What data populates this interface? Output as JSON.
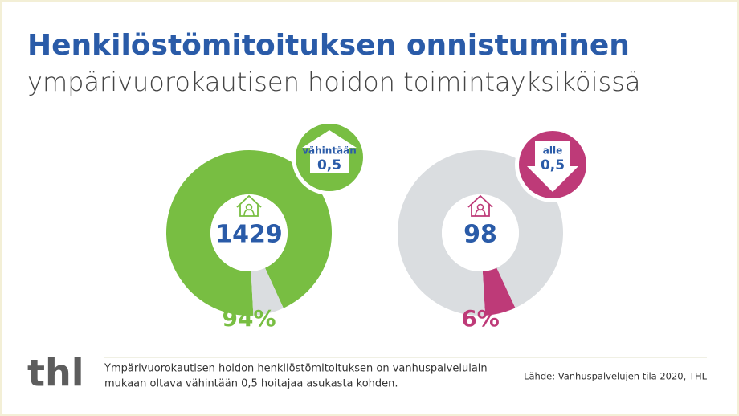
{
  "header": {
    "title": "Henkilöstömitoituksen onnistuminen",
    "subtitle": "ympärivuorokautisen hoidon toimintayksiköissä"
  },
  "chart_data": [
    {
      "type": "donut",
      "values": [
        94,
        6
      ],
      "value_labels": [
        "94%",
        null
      ],
      "colors": [
        "#78be42",
        "#dadde0"
      ],
      "count": 1429,
      "badge": {
        "label": "vähintään",
        "value": "0,5"
      },
      "badge_color": "#78be42",
      "badge_arrow": "up"
    },
    {
      "type": "donut",
      "values": [
        6,
        94
      ],
      "value_labels": [
        "6%",
        null
      ],
      "colors": [
        "#be3a78",
        "#dadde0"
      ],
      "count": 98,
      "badge": {
        "label": "alle",
        "value": "0,5"
      },
      "badge_color": "#be3a78",
      "badge_arrow": "down"
    }
  ],
  "footer": {
    "logo": "thl",
    "note_line1": "Ympärivuorokautisen hoidon henkilöstömitoituksen on vanhuspalvelulain",
    "note_line2": "mukaan oltava vähintään 0,5 hoitajaa asukasta kohden.",
    "source": "Lähde: Vanhuspalvelujen tila 2020, THL"
  }
}
